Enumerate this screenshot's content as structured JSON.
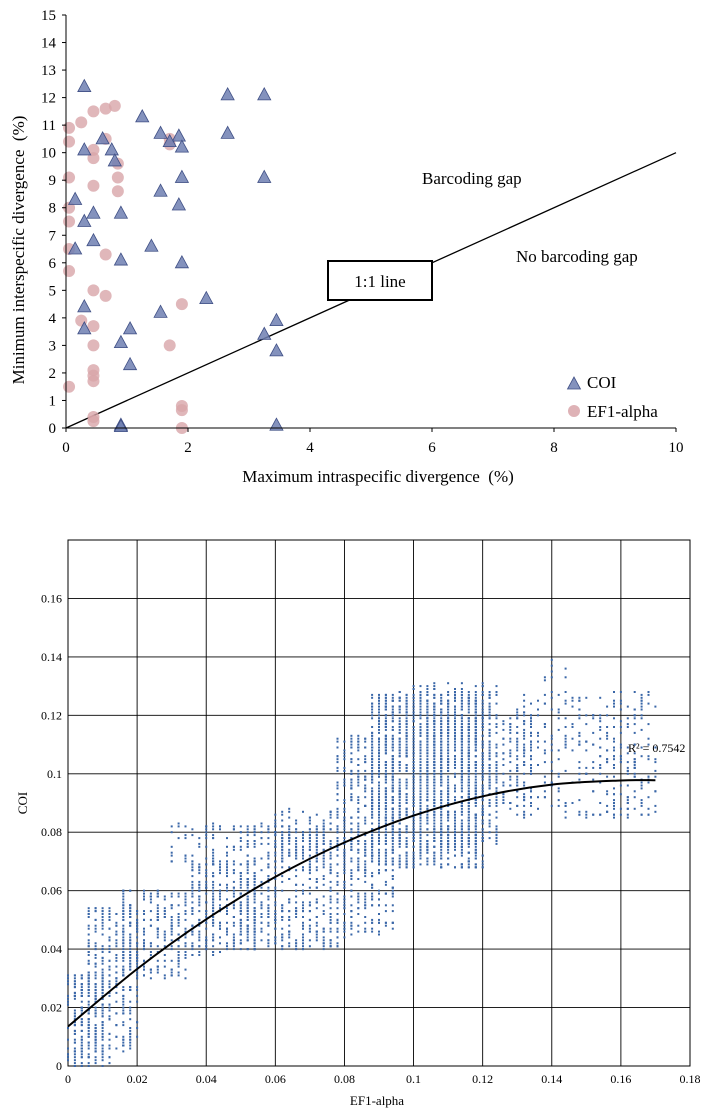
{
  "chart_data": [
    {
      "type": "scatter",
      "title": "",
      "xlabel": "Maximum intraspecific divergence  (%)",
      "ylabel": "Minimum interspecific divergence  (%)",
      "xlim": [
        0,
        10
      ],
      "ylim": [
        0,
        15
      ],
      "x_ticks": [
        "0",
        "2",
        "4",
        "6",
        "8",
        "10"
      ],
      "y_ticks": [
        "0",
        "1",
        "2",
        "3",
        "4",
        "5",
        "6",
        "7",
        "8",
        "9",
        "10",
        "11",
        "12",
        "13",
        "14",
        "15"
      ],
      "grid": false,
      "legend_position": "bottom-right",
      "reference_line": {
        "label": "1:1 line",
        "slope": 1
      },
      "annotations": [
        "Barcoding gap",
        "No barcoding gap"
      ],
      "series": [
        {
          "name": "COI",
          "marker": "triangle",
          "color": "#6f7fb2",
          "points": [
            [
              0.3,
              12.4
            ],
            [
              1.25,
              11.3
            ],
            [
              1.55,
              10.7
            ],
            [
              1.85,
              10.6
            ],
            [
              1.7,
              10.4
            ],
            [
              0.6,
              10.5
            ],
            [
              0.3,
              10.1
            ],
            [
              0.75,
              10.1
            ],
            [
              1.9,
              10.2
            ],
            [
              0.8,
              9.7
            ],
            [
              2.65,
              12.1
            ],
            [
              3.25,
              12.1
            ],
            [
              2.65,
              10.7
            ],
            [
              1.9,
              9.1
            ],
            [
              3.25,
              9.1
            ],
            [
              1.55,
              8.6
            ],
            [
              1.85,
              8.1
            ],
            [
              0.15,
              8.3
            ],
            [
              0.45,
              7.8
            ],
            [
              0.9,
              7.8
            ],
            [
              0.3,
              7.5
            ],
            [
              0.45,
              6.8
            ],
            [
              1.4,
              6.6
            ],
            [
              0.15,
              6.5
            ],
            [
              0.9,
              6.1
            ],
            [
              1.9,
              6.0
            ],
            [
              2.3,
              4.7
            ],
            [
              1.55,
              4.2
            ],
            [
              0.3,
              4.4
            ],
            [
              3.45,
              3.9
            ],
            [
              3.25,
              3.4
            ],
            [
              1.05,
              3.6
            ],
            [
              0.3,
              3.6
            ],
            [
              0.9,
              3.1
            ],
            [
              3.45,
              2.8
            ],
            [
              1.05,
              2.3
            ],
            [
              0.9,
              0.1
            ],
            [
              0.9,
              0.05
            ],
            [
              3.45,
              0.1
            ]
          ]
        },
        {
          "name": "EF1-alpha",
          "marker": "circle",
          "color": "#d8a5a9",
          "points": [
            [
              0.8,
              11.7
            ],
            [
              0.65,
              11.6
            ],
            [
              0.45,
              11.5
            ],
            [
              0.25,
              11.1
            ],
            [
              0.05,
              10.9
            ],
            [
              0.65,
              10.5
            ],
            [
              1.7,
              10.5
            ],
            [
              1.7,
              10.3
            ],
            [
              0.05,
              10.4
            ],
            [
              0.45,
              10.1
            ],
            [
              0.45,
              9.8
            ],
            [
              0.85,
              9.6
            ],
            [
              0.05,
              9.1
            ],
            [
              0.85,
              9.1
            ],
            [
              0.45,
              8.8
            ],
            [
              0.85,
              8.6
            ],
            [
              0.05,
              8.0
            ],
            [
              0.05,
              7.5
            ],
            [
              0.05,
              6.5
            ],
            [
              0.65,
              6.3
            ],
            [
              0.05,
              5.7
            ],
            [
              0.45,
              5.0
            ],
            [
              0.65,
              4.8
            ],
            [
              1.9,
              4.5
            ],
            [
              0.25,
              3.9
            ],
            [
              0.45,
              3.7
            ],
            [
              0.45,
              3.0
            ],
            [
              1.7,
              3.0
            ],
            [
              0.45,
              2.1
            ],
            [
              0.45,
              1.9
            ],
            [
              0.45,
              1.7
            ],
            [
              0.05,
              1.5
            ],
            [
              1.9,
              0.8
            ],
            [
              1.9,
              0.65
            ],
            [
              0.45,
              0.4
            ],
            [
              0.45,
              0.25
            ],
            [
              1.9,
              0.0
            ]
          ]
        }
      ]
    },
    {
      "type": "scatter",
      "title": "",
      "xlabel": "EF1-alpha",
      "ylabel": "COI",
      "xlim": [
        0,
        0.18
      ],
      "ylim": [
        0,
        0.18
      ],
      "x_ticks": [
        "0",
        "0.02",
        "0.04",
        "0.06",
        "0.08",
        "0.1",
        "0.12",
        "0.14",
        "0.16",
        "0.18"
      ],
      "y_ticks": [
        "0",
        "0.02",
        "0.04",
        "0.06",
        "0.08",
        "0.1",
        "0.12",
        "0.14",
        "0.16"
      ],
      "grid": true,
      "point_color": "#3a67a8",
      "trendline": {
        "type": "polynomial",
        "color": "#000000",
        "r2_label": "R² = 0.7542",
        "x": [
          0,
          0.02,
          0.04,
          0.06,
          0.08,
          0.1,
          0.12,
          0.14,
          0.16,
          0.17
        ],
        "y": [
          0.0135,
          0.0332,
          0.0502,
          0.0647,
          0.0765,
          0.0857,
          0.0923,
          0.0963,
          0.0977,
          0.0978
        ]
      },
      "clusters": [
        {
          "x": [
            0,
            0.012
          ],
          "y": [
            0,
            0.032
          ],
          "n": 240
        },
        {
          "x": [
            0.005,
            0.02
          ],
          "y": [
            0.005,
            0.055
          ],
          "n": 300
        },
        {
          "x": [
            0.015,
            0.035
          ],
          "y": [
            0.03,
            0.06
          ],
          "n": 260
        },
        {
          "x": [
            0.03,
            0.05
          ],
          "y": [
            0.068,
            0.083
          ],
          "n": 70
        },
        {
          "x": [
            0.035,
            0.055
          ],
          "y": [
            0.038,
            0.07
          ],
          "n": 330
        },
        {
          "x": [
            0.05,
            0.08
          ],
          "y": [
            0.04,
            0.083
          ],
          "n": 520
        },
        {
          "x": [
            0.06,
            0.082
          ],
          "y": [
            0.07,
            0.088
          ],
          "n": 140
        },
        {
          "x": [
            0.078,
            0.095
          ],
          "y": [
            0.045,
            0.113
          ],
          "n": 500
        },
        {
          "x": [
            0.088,
            0.12
          ],
          "y": [
            0.068,
            0.128
          ],
          "n": 1500
        },
        {
          "x": [
            0.1,
            0.125
          ],
          "y": [
            0.075,
            0.131
          ],
          "n": 520
        },
        {
          "x": [
            0.115,
            0.135
          ],
          "y": [
            0.088,
            0.12
          ],
          "n": 220
        },
        {
          "x": [
            0.13,
            0.17
          ],
          "y": [
            0.085,
            0.128
          ],
          "n": 360
        },
        {
          "x": [
            0.138,
            0.145
          ],
          "y": [
            0.13,
            0.14
          ],
          "n": 8
        }
      ]
    }
  ]
}
